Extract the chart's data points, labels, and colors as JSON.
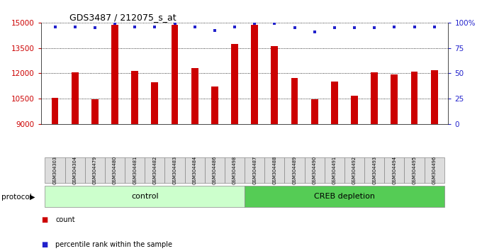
{
  "title": "GDS3487 / 212075_s_at",
  "samples": [
    "GSM304303",
    "GSM304304",
    "GSM304479",
    "GSM304480",
    "GSM304481",
    "GSM304482",
    "GSM304483",
    "GSM304484",
    "GSM304486",
    "GSM304498",
    "GSM304487",
    "GSM304488",
    "GSM304489",
    "GSM304490",
    "GSM304491",
    "GSM304492",
    "GSM304493",
    "GSM304494",
    "GSM304495",
    "GSM304496"
  ],
  "counts": [
    10550,
    12050,
    10450,
    14870,
    12150,
    11450,
    14870,
    12300,
    11200,
    13750,
    14870,
    13620,
    11700,
    10450,
    11500,
    10650,
    12050,
    11950,
    12100,
    12200
  ],
  "percentile_pcts": [
    96,
    96,
    95,
    99,
    96,
    96,
    99,
    96,
    92,
    96,
    99,
    99,
    95,
    91,
    95,
    95,
    95,
    96,
    96,
    96
  ],
  "control_count": 10,
  "creb_count": 10,
  "bar_color": "#cc0000",
  "dot_color": "#2222cc",
  "ylim_left": [
    9000,
    15000
  ],
  "ylim_right": [
    0,
    100
  ],
  "yticks_left": [
    9000,
    10500,
    12000,
    13500,
    15000
  ],
  "yticks_right": [
    0,
    25,
    50,
    75,
    100
  ],
  "control_color": "#ccffcc",
  "creb_color": "#55cc55",
  "control_label": "control",
  "creb_label": "CREB depletion",
  "protocol_label": "protocol",
  "legend_count": "count",
  "legend_percentile": "percentile rank within the sample",
  "bar_width": 0.35
}
